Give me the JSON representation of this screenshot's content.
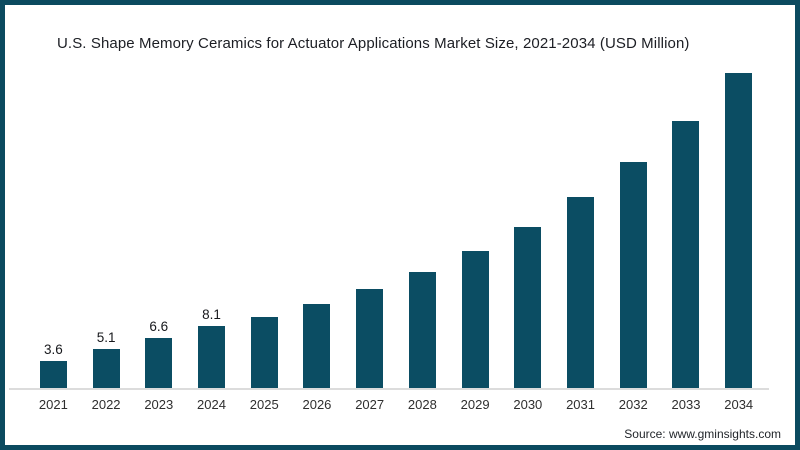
{
  "frame": {
    "border_color": "#0b4a5f",
    "background_color": "#ffffff"
  },
  "title": "U.S. Shape Memory Ceramics for Actuator Applications Market Size, 2021-2034 (USD Million)",
  "source": "Source: www.gminsights.com",
  "chart_data": {
    "type": "bar",
    "title": "U.S. Shape Memory Ceramics for Actuator Applications Market Size, 2021-2034 (USD Million)",
    "xlabel": "",
    "ylabel": "",
    "categories": [
      "2021",
      "2022",
      "2023",
      "2024",
      "2025",
      "2026",
      "2027",
      "2028",
      "2029",
      "2030",
      "2031",
      "2032",
      "2033",
      "2034"
    ],
    "values": [
      3.6,
      5.1,
      6.6,
      8.1,
      9.3,
      11.1,
      13.0,
      15.3,
      18.0,
      21.2,
      25.1,
      29.7,
      35.1,
      41.4
    ],
    "data_labels": [
      "3.6",
      "5.1",
      "6.6",
      "8.1",
      "",
      "",
      "",
      "",
      "",
      "",
      "",
      "",
      "",
      ""
    ],
    "ylim": [
      0,
      45
    ],
    "gridlines": false,
    "legend": false,
    "y_axis_visible": false,
    "bar_color": "#0b4d63",
    "axis_line_color": "#dcdcdc"
  }
}
